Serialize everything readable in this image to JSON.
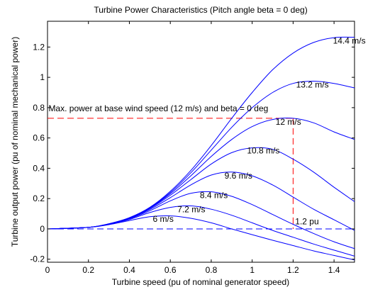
{
  "chart_data": {
    "type": "line",
    "title": "Turbine Power Characteristics (Pitch angle beta = 0 deg)",
    "xlabel": "Turbine speed (pu of nominal generator speed)",
    "ylabel": "Turbine output power (pu of nominal mechanical power)",
    "xlim": [
      0,
      1.5
    ],
    "ylim": [
      -0.22,
      1.37
    ],
    "xticks": [
      "0",
      "0.2",
      "0.4",
      "0.6",
      "0.8",
      "1",
      "1.2",
      "1.4"
    ],
    "yticks": [
      "-0.2",
      "0",
      "0.2",
      "0.4",
      "0.6",
      "0.8",
      "1",
      "1.2"
    ],
    "grid": false,
    "series_color": "#0000ff",
    "reference_color": "#ff0000",
    "series": [
      {
        "name": "6 m/s",
        "peak_x": 0.57,
        "peak_y": 0.088,
        "x": [
          0,
          0.2,
          0.3,
          0.4,
          0.5,
          0.6,
          0.7,
          0.8,
          0.9,
          1.0,
          1.1,
          1.2,
          1.3,
          1.4,
          1.5
        ],
        "y": [
          0,
          0.01,
          0.028,
          0.055,
          0.08,
          0.086,
          0.07,
          0.04,
          0.0,
          -0.038,
          -0.075,
          -0.11,
          -0.145,
          -0.175,
          -0.205
        ]
      },
      {
        "name": "7.2 m/s",
        "peak_x": 0.69,
        "peak_y": 0.152,
        "x": [
          0,
          0.2,
          0.3,
          0.4,
          0.5,
          0.6,
          0.7,
          0.8,
          0.9,
          1.0,
          1.1,
          1.2,
          1.3,
          1.4,
          1.5
        ],
        "y": [
          0,
          0.01,
          0.03,
          0.062,
          0.108,
          0.142,
          0.152,
          0.13,
          0.09,
          0.04,
          -0.01,
          -0.055,
          -0.1,
          -0.14,
          -0.18
        ]
      },
      {
        "name": "8.4 m/s",
        "peak_x": 0.8,
        "peak_y": 0.245,
        "x": [
          0,
          0.2,
          0.3,
          0.4,
          0.5,
          0.6,
          0.7,
          0.8,
          0.9,
          1.0,
          1.1,
          1.2,
          1.3,
          1.4,
          1.5
        ],
        "y": [
          0,
          0.01,
          0.031,
          0.066,
          0.12,
          0.185,
          0.235,
          0.245,
          0.215,
          0.16,
          0.095,
          0.03,
          -0.03,
          -0.085,
          -0.13
        ]
      },
      {
        "name": "9.6 m/s",
        "peak_x": 0.92,
        "peak_y": 0.375,
        "x": [
          0,
          0.2,
          0.3,
          0.4,
          0.5,
          0.6,
          0.7,
          0.8,
          0.9,
          1.0,
          1.1,
          1.2,
          1.3,
          1.4,
          1.5
        ],
        "y": [
          0,
          0.01,
          0.032,
          0.069,
          0.128,
          0.206,
          0.29,
          0.355,
          0.375,
          0.35,
          0.29,
          0.21,
          0.13,
          0.06,
          -0.01
        ]
      },
      {
        "name": "10.8 m/s",
        "peak_x": 1.03,
        "peak_y": 0.54,
        "x": [
          0,
          0.2,
          0.3,
          0.4,
          0.5,
          0.6,
          0.7,
          0.8,
          0.9,
          1.0,
          1.1,
          1.2,
          1.3,
          1.4,
          1.5
        ],
        "y": [
          0,
          0.01,
          0.033,
          0.071,
          0.134,
          0.222,
          0.325,
          0.428,
          0.503,
          0.535,
          0.525,
          0.46,
          0.375,
          0.275,
          0.18
        ]
      },
      {
        "name": "12 m/s",
        "peak_x": 1.17,
        "peak_y": 0.73,
        "x": [
          0,
          0.2,
          0.3,
          0.4,
          0.5,
          0.6,
          0.7,
          0.8,
          0.9,
          1.0,
          1.1,
          1.2,
          1.3,
          1.4,
          1.5
        ],
        "y": [
          0,
          0.01,
          0.033,
          0.072,
          0.138,
          0.232,
          0.35,
          0.478,
          0.59,
          0.675,
          0.722,
          0.73,
          0.7,
          0.64,
          0.59
        ]
      },
      {
        "name": "13.2 m/s",
        "peak_x": 1.27,
        "peak_y": 0.975,
        "x": [
          0,
          0.2,
          0.3,
          0.4,
          0.5,
          0.6,
          0.7,
          0.8,
          0.9,
          1.0,
          1.1,
          1.2,
          1.3,
          1.4,
          1.5
        ],
        "y": [
          0,
          0.01,
          0.034,
          0.073,
          0.14,
          0.24,
          0.37,
          0.52,
          0.67,
          0.8,
          0.9,
          0.96,
          0.975,
          0.96,
          0.93
        ]
      },
      {
        "name": "14.4 m/s",
        "peak_x": 1.45,
        "peak_y": 1.265,
        "x": [
          0,
          0.2,
          0.3,
          0.4,
          0.5,
          0.6,
          0.7,
          0.8,
          0.9,
          1.0,
          1.1,
          1.2,
          1.3,
          1.4,
          1.5
        ],
        "y": [
          0,
          0.01,
          0.034,
          0.074,
          0.142,
          0.248,
          0.385,
          0.55,
          0.73,
          0.9,
          1.05,
          1.16,
          1.23,
          1.262,
          1.265
        ]
      }
    ],
    "annotations": [
      {
        "text": "Max. power at base wind speed (12 m/s) and beta = 0 deg",
        "x": 0.005,
        "y": 0.775
      },
      {
        "text": "1.2 pu",
        "x": 1.21,
        "y": 0.03
      }
    ],
    "reference_lines": {
      "max_power_y": 0.73,
      "zero_y": 0.0,
      "speed_x": 1.2
    }
  }
}
